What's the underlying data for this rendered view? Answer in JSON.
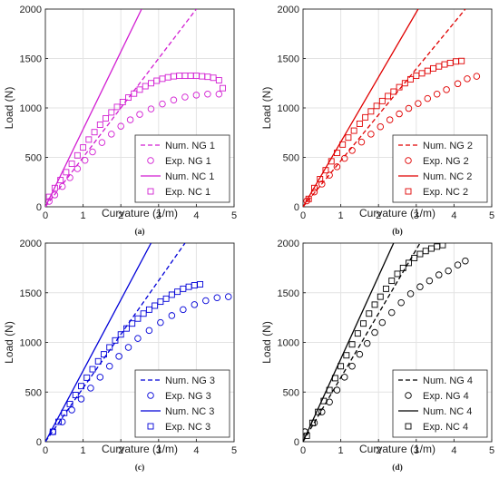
{
  "chart_data": [
    {
      "type": "line",
      "panel_label": "(a)",
      "xlabel": "Curvature (1/m)",
      "ylabel": "Load (N)",
      "xlim": [
        0,
        5
      ],
      "ylim": [
        0,
        2000
      ],
      "xticks": [
        "0",
        "1",
        "2",
        "3",
        "4",
        "5"
      ],
      "yticks": [
        "0",
        "500",
        "1000",
        "1500",
        "2000"
      ],
      "grid": true,
      "legend_position": "lower-right",
      "color": "#d21ed2",
      "series": [
        {
          "name": "Num. NG 1",
          "style": "dashed",
          "x": [
            0,
            4.0
          ],
          "y": [
            0,
            2000
          ]
        },
        {
          "name": "Exp. NG 1",
          "marker": "circle",
          "x": [
            0.1,
            0.25,
            0.45,
            0.65,
            0.85,
            1.05,
            1.25,
            1.5,
            1.75,
            2.0,
            2.25,
            2.5,
            2.8,
            3.1,
            3.4,
            3.7,
            4.0,
            4.3,
            4.6
          ],
          "y": [
            55,
            120,
            205,
            295,
            385,
            470,
            555,
            650,
            735,
            815,
            880,
            935,
            990,
            1040,
            1080,
            1110,
            1130,
            1140,
            1140
          ]
        },
        {
          "name": "Num. NC 1",
          "style": "solid",
          "x": [
            0,
            2.55
          ],
          "y": [
            0,
            2000
          ]
        },
        {
          "name": "Exp. NC 1",
          "marker": "square",
          "x": [
            0.1,
            0.25,
            0.4,
            0.55,
            0.7,
            0.85,
            1.0,
            1.15,
            1.3,
            1.45,
            1.6,
            1.75,
            1.9,
            2.05,
            2.2,
            2.35,
            2.5,
            2.65,
            2.8,
            2.95,
            3.1,
            3.25,
            3.4,
            3.55,
            3.7,
            3.85,
            4.0,
            4.15,
            4.3,
            4.45,
            4.6,
            4.7
          ],
          "y": [
            100,
            190,
            270,
            350,
            435,
            520,
            600,
            680,
            755,
            830,
            895,
            955,
            1010,
            1060,
            1105,
            1145,
            1185,
            1220,
            1250,
            1275,
            1295,
            1310,
            1320,
            1325,
            1325,
            1325,
            1325,
            1320,
            1315,
            1305,
            1280,
            1200
          ]
        }
      ]
    },
    {
      "type": "line",
      "panel_label": "(b)",
      "xlabel": "Curvature (1/m)",
      "ylabel": "Load (N)",
      "xlim": [
        0,
        5
      ],
      "ylim": [
        0,
        2000
      ],
      "xticks": [
        "0",
        "1",
        "2",
        "3",
        "4",
        "5"
      ],
      "yticks": [
        "0",
        "500",
        "1000",
        "1500",
        "2000"
      ],
      "grid": true,
      "legend_position": "lower-right",
      "color": "#e00000",
      "series": [
        {
          "name": "Num. NG 2",
          "style": "dashed",
          "x": [
            0,
            4.3
          ],
          "y": [
            0,
            2000
          ]
        },
        {
          "name": "Exp. NG 2",
          "marker": "circle",
          "x": [
            0.1,
            0.3,
            0.5,
            0.7,
            0.9,
            1.1,
            1.3,
            1.55,
            1.8,
            2.05,
            2.3,
            2.55,
            2.8,
            3.05,
            3.3,
            3.55,
            3.8,
            4.1,
            4.35,
            4.6
          ],
          "y": [
            60,
            150,
            230,
            320,
            405,
            490,
            570,
            655,
            735,
            810,
            880,
            940,
            995,
            1045,
            1095,
            1140,
            1185,
            1245,
            1295,
            1320
          ]
        },
        {
          "name": "Num. NC 2",
          "style": "solid",
          "x": [
            0,
            3.05
          ],
          "y": [
            0,
            2000
          ]
        },
        {
          "name": "Exp. NC 2",
          "marker": "square",
          "x": [
            0.15,
            0.3,
            0.45,
            0.6,
            0.75,
            0.9,
            1.05,
            1.2,
            1.35,
            1.5,
            1.65,
            1.8,
            1.95,
            2.1,
            2.25,
            2.4,
            2.55,
            2.7,
            2.85,
            3.0,
            3.15,
            3.3,
            3.45,
            3.6,
            3.75,
            3.9,
            4.05,
            4.2
          ],
          "y": [
            80,
            190,
            280,
            370,
            460,
            545,
            630,
            700,
            770,
            840,
            905,
            965,
            1020,
            1070,
            1120,
            1165,
            1210,
            1250,
            1290,
            1325,
            1350,
            1375,
            1400,
            1420,
            1440,
            1455,
            1470,
            1475
          ]
        }
      ]
    },
    {
      "type": "line",
      "panel_label": "(c)",
      "xlabel": "Curvature (1/m)",
      "ylabel": "Load (N)",
      "xlim": [
        0,
        5
      ],
      "ylim": [
        0,
        2000
      ],
      "xticks": [
        "0",
        "1",
        "2",
        "3",
        "4",
        "5"
      ],
      "yticks": [
        "0",
        "500",
        "1000",
        "1500",
        "2000"
      ],
      "grid": true,
      "legend_position": "lower-right",
      "color": "#0000d8",
      "series": [
        {
          "name": "Num. NG 3",
          "style": "dashed",
          "x": [
            0,
            3.7
          ],
          "y": [
            0,
            2000
          ]
        },
        {
          "name": "Exp. NG 3",
          "marker": "circle",
          "x": [
            0.2,
            0.45,
            0.7,
            0.95,
            1.2,
            1.45,
            1.7,
            1.95,
            2.2,
            2.45,
            2.75,
            3.05,
            3.35,
            3.65,
            3.95,
            4.25,
            4.55,
            4.85
          ],
          "y": [
            100,
            200,
            320,
            430,
            540,
            650,
            760,
            860,
            950,
            1040,
            1120,
            1200,
            1270,
            1330,
            1380,
            1420,
            1450,
            1460
          ]
        },
        {
          "name": "Num. NC 3",
          "style": "solid",
          "x": [
            0,
            2.8
          ],
          "y": [
            0,
            2000
          ]
        },
        {
          "name": "Exp. NC 3",
          "marker": "square",
          "x": [
            0.2,
            0.35,
            0.5,
            0.65,
            0.8,
            0.95,
            1.1,
            1.25,
            1.4,
            1.55,
            1.7,
            1.85,
            2.0,
            2.15,
            2.3,
            2.45,
            2.6,
            2.75,
            2.9,
            3.05,
            3.2,
            3.35,
            3.5,
            3.65,
            3.8,
            3.95,
            4.1
          ],
          "y": [
            100,
            200,
            290,
            380,
            470,
            560,
            645,
            730,
            810,
            880,
            950,
            1020,
            1080,
            1140,
            1190,
            1240,
            1290,
            1330,
            1370,
            1410,
            1440,
            1480,
            1510,
            1540,
            1560,
            1575,
            1585
          ]
        }
      ]
    },
    {
      "type": "line",
      "panel_label": "(d)",
      "xlabel": "Curvature (1/m)",
      "ylabel": "Load (N)",
      "xlim": [
        0,
        5
      ],
      "ylim": [
        0,
        2000
      ],
      "xticks": [
        "0",
        "1",
        "2",
        "3",
        "4",
        "5"
      ],
      "yticks": [
        "0",
        "500",
        "1000",
        "1500",
        "2000"
      ],
      "grid": true,
      "legend_position": "lower-right",
      "color": "#000000",
      "series": [
        {
          "name": "Num. NG 4",
          "style": "dashed",
          "x": [
            0,
            3.1
          ],
          "y": [
            0,
            2000
          ]
        },
        {
          "name": "Exp. NG 4",
          "marker": "circle",
          "x": [
            0.05,
            0.3,
            0.5,
            0.7,
            0.9,
            1.1,
            1.3,
            1.5,
            1.7,
            1.9,
            2.1,
            2.35,
            2.6,
            2.85,
            3.1,
            3.35,
            3.6,
            3.85,
            4.1,
            4.3
          ],
          "y": [
            100,
            190,
            300,
            400,
            520,
            650,
            760,
            880,
            990,
            1100,
            1200,
            1300,
            1400,
            1490,
            1560,
            1620,
            1680,
            1720,
            1780,
            1820
          ]
        },
        {
          "name": "Num. NC 4",
          "style": "solid",
          "x": [
            0,
            2.4
          ],
          "y": [
            0,
            2000
          ]
        },
        {
          "name": "Exp. NC 4",
          "marker": "square",
          "x": [
            0.1,
            0.25,
            0.4,
            0.55,
            0.7,
            0.85,
            1.0,
            1.15,
            1.3,
            1.45,
            1.6,
            1.75,
            1.9,
            2.05,
            2.2,
            2.35,
            2.5,
            2.65,
            2.8,
            2.95,
            3.1,
            3.25,
            3.4,
            3.55,
            3.7
          ],
          "y": [
            60,
            190,
            300,
            410,
            520,
            640,
            760,
            870,
            980,
            1090,
            1190,
            1290,
            1380,
            1460,
            1540,
            1620,
            1690,
            1750,
            1800,
            1850,
            1890,
            1920,
            1945,
            1965,
            1980
          ]
        }
      ]
    }
  ]
}
